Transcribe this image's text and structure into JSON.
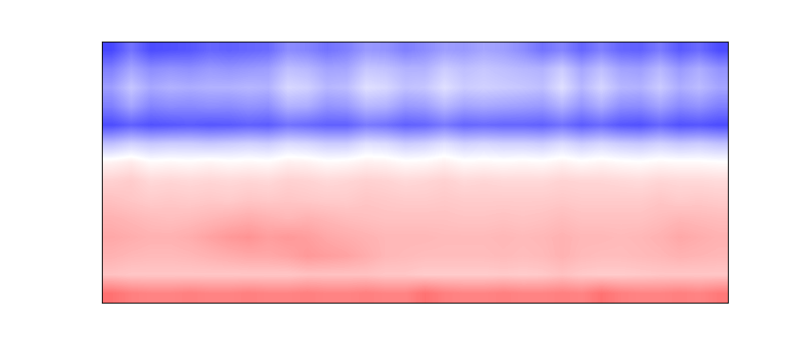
{
  "chart_data": {
    "type": "heatmap",
    "color": "bwr",
    "tick_labels": false,
    "color_range": [
      -1,
      1
    ],
    "cells": [
      [
        -0.72,
        -0.55,
        -0.7,
        -0.68,
        -0.66,
        -0.6,
        -0.62,
        -0.6,
        -0.58,
        -0.45,
        -0.48,
        -0.55,
        -0.5,
        -0.4,
        -0.42,
        -0.5,
        -0.45,
        -0.38,
        -0.4,
        -0.35,
        -0.38,
        -0.45,
        -0.55,
        -0.48,
        -0.6,
        -0.5,
        -0.6,
        -0.62,
        -0.52,
        -0.65,
        -0.58,
        -0.7
      ],
      [
        -0.5,
        -0.35,
        -0.45,
        -0.42,
        -0.44,
        -0.4,
        -0.42,
        -0.4,
        -0.38,
        -0.25,
        -0.28,
        -0.36,
        -0.35,
        -0.22,
        -0.24,
        -0.3,
        -0.3,
        -0.2,
        -0.25,
        -0.22,
        -0.25,
        -0.28,
        -0.3,
        -0.2,
        -0.35,
        -0.25,
        -0.36,
        -0.38,
        -0.28,
        -0.4,
        -0.32,
        -0.42
      ],
      [
        -0.38,
        -0.22,
        -0.34,
        -0.3,
        -0.32,
        -0.3,
        -0.3,
        -0.28,
        -0.3,
        -0.15,
        -0.18,
        -0.28,
        -0.26,
        -0.12,
        -0.15,
        -0.24,
        -0.22,
        -0.12,
        -0.2,
        -0.18,
        -0.2,
        -0.22,
        -0.25,
        -0.12,
        -0.28,
        -0.16,
        -0.28,
        -0.3,
        -0.2,
        -0.32,
        -0.26,
        -0.35
      ],
      [
        -0.5,
        -0.35,
        -0.48,
        -0.45,
        -0.46,
        -0.44,
        -0.45,
        -0.42,
        -0.44,
        -0.3,
        -0.32,
        -0.42,
        -0.4,
        -0.28,
        -0.3,
        -0.4,
        -0.38,
        -0.28,
        -0.36,
        -0.34,
        -0.36,
        -0.38,
        -0.4,
        -0.3,
        -0.42,
        -0.32,
        -0.44,
        -0.45,
        -0.36,
        -0.46,
        -0.42,
        -0.5
      ],
      [
        -0.7,
        -0.62,
        -0.68,
        -0.66,
        -0.64,
        -0.66,
        -0.65,
        -0.62,
        -0.64,
        -0.55,
        -0.58,
        -0.62,
        -0.62,
        -0.52,
        -0.55,
        -0.62,
        -0.6,
        -0.52,
        -0.6,
        -0.58,
        -0.6,
        -0.6,
        -0.62,
        -0.55,
        -0.64,
        -0.58,
        -0.66,
        -0.68,
        -0.6,
        -0.68,
        -0.66,
        -0.7
      ],
      [
        -0.25,
        -0.18,
        -0.22,
        -0.2,
        -0.2,
        -0.22,
        -0.2,
        -0.18,
        -0.2,
        -0.14,
        -0.16,
        -0.2,
        -0.2,
        -0.12,
        -0.14,
        -0.2,
        -0.18,
        -0.12,
        -0.18,
        -0.16,
        -0.18,
        -0.18,
        -0.2,
        -0.14,
        -0.2,
        -0.16,
        -0.2,
        -0.22,
        -0.18,
        -0.22,
        -0.2,
        -0.24
      ],
      [
        0.05,
        0.08,
        0.02,
        0.03,
        0.02,
        0.04,
        0.02,
        0.03,
        0.02,
        0.06,
        0.05,
        0.02,
        0.03,
        0.06,
        0.05,
        0.02,
        0.03,
        0.06,
        0.02,
        0.03,
        0.02,
        0.03,
        0.02,
        0.05,
        0.02,
        0.04,
        0.02,
        0.01,
        0.03,
        0.02,
        0.02,
        0.01
      ],
      [
        0.18,
        0.2,
        0.15,
        0.16,
        0.15,
        0.16,
        0.15,
        0.16,
        0.15,
        0.18,
        0.17,
        0.15,
        0.16,
        0.18,
        0.17,
        0.15,
        0.16,
        0.18,
        0.15,
        0.16,
        0.15,
        0.15,
        0.15,
        0.17,
        0.16,
        0.16,
        0.15,
        0.14,
        0.16,
        0.15,
        0.15,
        0.14
      ],
      [
        0.24,
        0.22,
        0.2,
        0.21,
        0.2,
        0.21,
        0.2,
        0.22,
        0.21,
        0.22,
        0.21,
        0.2,
        0.2,
        0.22,
        0.21,
        0.2,
        0.2,
        0.21,
        0.2,
        0.2,
        0.2,
        0.2,
        0.2,
        0.21,
        0.2,
        0.2,
        0.2,
        0.2,
        0.22,
        0.2,
        0.21,
        0.2
      ],
      [
        0.3,
        0.28,
        0.26,
        0.25,
        0.26,
        0.28,
        0.3,
        0.32,
        0.3,
        0.28,
        0.3,
        0.28,
        0.26,
        0.25,
        0.24,
        0.24,
        0.24,
        0.24,
        0.23,
        0.23,
        0.24,
        0.23,
        0.24,
        0.26,
        0.24,
        0.24,
        0.24,
        0.24,
        0.26,
        0.28,
        0.27,
        0.26
      ],
      [
        0.34,
        0.32,
        0.3,
        0.3,
        0.32,
        0.36,
        0.4,
        0.42,
        0.38,
        0.4,
        0.38,
        0.34,
        0.32,
        0.3,
        0.28,
        0.28,
        0.28,
        0.27,
        0.27,
        0.27,
        0.28,
        0.27,
        0.28,
        0.3,
        0.28,
        0.28,
        0.27,
        0.28,
        0.3,
        0.34,
        0.32,
        0.3
      ],
      [
        0.3,
        0.28,
        0.27,
        0.27,
        0.28,
        0.3,
        0.32,
        0.34,
        0.34,
        0.36,
        0.4,
        0.38,
        0.36,
        0.32,
        0.28,
        0.27,
        0.26,
        0.26,
        0.26,
        0.26,
        0.27,
        0.26,
        0.27,
        0.3,
        0.27,
        0.26,
        0.26,
        0.27,
        0.28,
        0.3,
        0.29,
        0.28
      ],
      [
        0.24,
        0.22,
        0.22,
        0.22,
        0.22,
        0.22,
        0.22,
        0.22,
        0.22,
        0.22,
        0.24,
        0.24,
        0.24,
        0.24,
        0.22,
        0.22,
        0.2,
        0.2,
        0.2,
        0.2,
        0.21,
        0.2,
        0.21,
        0.24,
        0.21,
        0.2,
        0.2,
        0.21,
        0.22,
        0.22,
        0.22,
        0.22
      ],
      [
        0.55,
        0.5,
        0.48,
        0.48,
        0.5,
        0.48,
        0.48,
        0.5,
        0.48,
        0.48,
        0.5,
        0.48,
        0.48,
        0.5,
        0.48,
        0.48,
        0.55,
        0.5,
        0.48,
        0.48,
        0.5,
        0.48,
        0.48,
        0.5,
        0.48,
        0.55,
        0.5,
        0.48,
        0.48,
        0.5,
        0.48,
        0.52
      ]
    ]
  }
}
